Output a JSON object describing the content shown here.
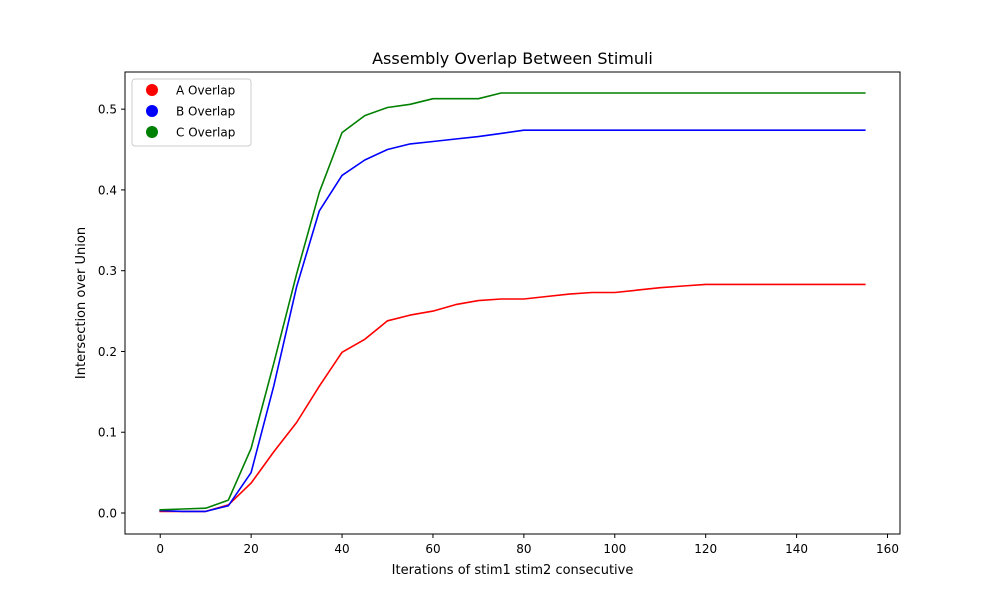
{
  "chart_data": {
    "type": "line",
    "title": "Assembly Overlap Between Stimuli",
    "xlabel": "Iterations of stim1 stim2 consecutive",
    "ylabel": "Intersection over Union",
    "xlim": [
      -7.75,
      162.75
    ],
    "ylim": [
      -0.026,
      0.546
    ],
    "x_ticks": [
      0,
      20,
      40,
      60,
      80,
      100,
      120,
      140,
      160
    ],
    "y_ticks": [
      0.0,
      0.1,
      0.2,
      0.3,
      0.4,
      0.5
    ],
    "grid": false,
    "legend_position": "upper-left",
    "x": [
      0,
      5,
      10,
      15,
      20,
      25,
      30,
      35,
      40,
      45,
      50,
      55,
      60,
      65,
      70,
      75,
      80,
      85,
      90,
      95,
      100,
      105,
      110,
      115,
      120,
      125,
      130,
      135,
      140,
      145,
      150,
      155
    ],
    "series": [
      {
        "name": "A Overlap",
        "color": "#ff0000",
        "values": [
          0.002,
          0.002,
          0.002,
          0.01,
          0.037,
          0.076,
          0.112,
          0.157,
          0.199,
          0.215,
          0.238,
          0.245,
          0.25,
          0.258,
          0.263,
          0.265,
          0.265,
          0.268,
          0.271,
          0.273,
          0.273,
          0.276,
          0.279,
          0.281,
          0.283,
          0.283,
          0.283,
          0.283,
          0.283,
          0.283,
          0.283,
          0.283
        ]
      },
      {
        "name": "B Overlap",
        "color": "#0000ff",
        "values": [
          0.003,
          0.002,
          0.002,
          0.009,
          0.05,
          0.158,
          0.28,
          0.374,
          0.418,
          0.437,
          0.45,
          0.457,
          0.46,
          0.463,
          0.466,
          0.47,
          0.474,
          0.474,
          0.474,
          0.474,
          0.474,
          0.474,
          0.474,
          0.474,
          0.474,
          0.474,
          0.474,
          0.474,
          0.474,
          0.474,
          0.474,
          0.474
        ]
      },
      {
        "name": "C Overlap",
        "color": "#008000",
        "values": [
          0.004,
          0.005,
          0.006,
          0.016,
          0.08,
          0.186,
          0.296,
          0.397,
          0.471,
          0.492,
          0.502,
          0.506,
          0.513,
          0.513,
          0.513,
          0.52,
          0.52,
          0.52,
          0.52,
          0.52,
          0.52,
          0.52,
          0.52,
          0.52,
          0.52,
          0.52,
          0.52,
          0.52,
          0.52,
          0.52,
          0.52,
          0.52
        ]
      }
    ]
  }
}
